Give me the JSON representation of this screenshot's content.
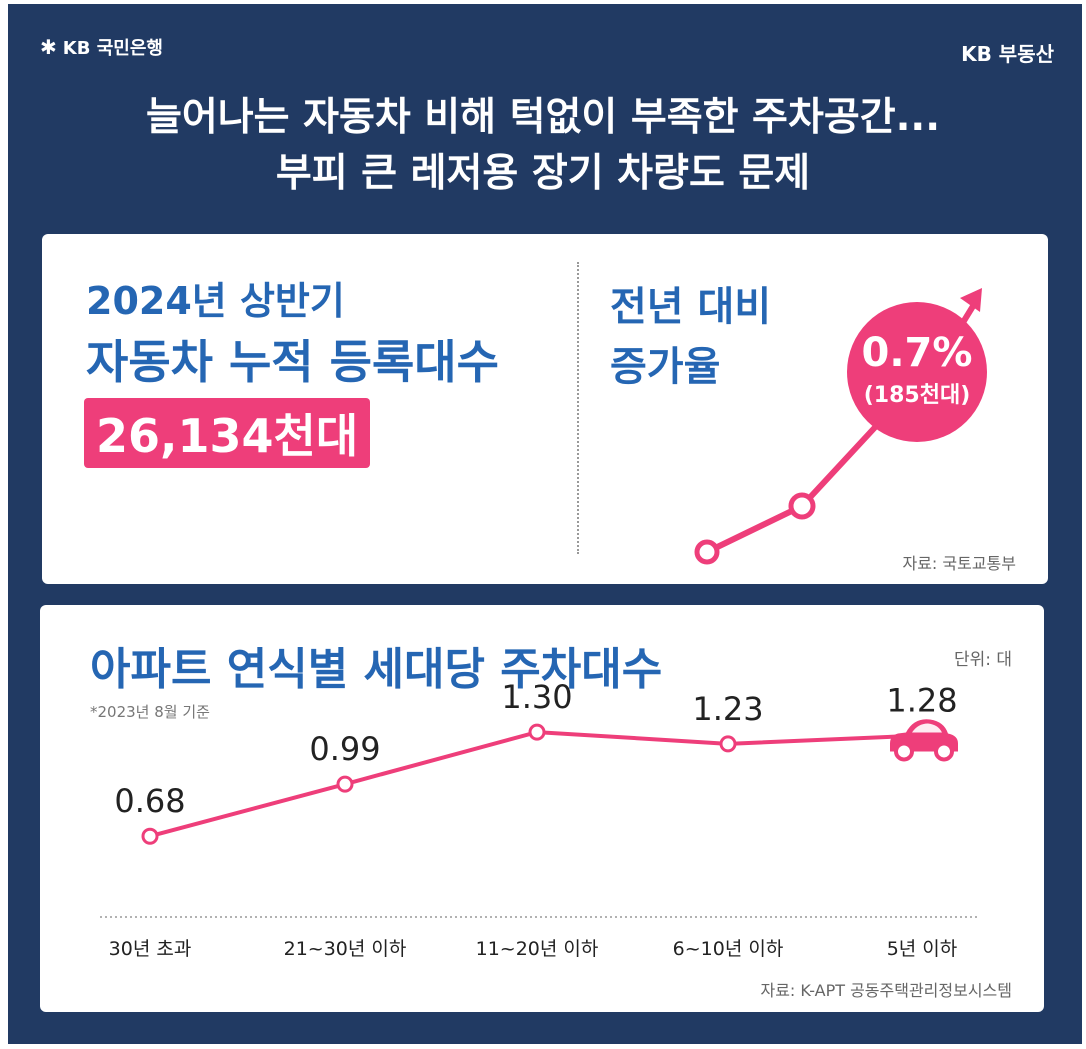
{
  "header": {
    "logo_text": "KB 국민은행",
    "brand_right": "KB 부동산",
    "title_line1_a": "늘어나는 자동차 비해 ",
    "title_line1_b": "턱없이 부족한 주차공간...",
    "title_line2": "부피 큰 레저용 장기 차량도 문제"
  },
  "registration": {
    "label_line1": "2024년 상반기",
    "label_line2": "자동차 누적 등록대수",
    "value": "26,134천대",
    "growth_label_line1": "전년 대비",
    "growth_label_line2": "증가율",
    "growth_rate": "0.7%",
    "growth_count": "(185천대)",
    "source": "자료: 국토교통부"
  },
  "parking": {
    "title": "아파트 연식별 세대당 주차대수",
    "note": "*2023년 8월 기준",
    "unit": "단위: 대",
    "source": "자료: K-APT 공동주택관리정보시스템"
  },
  "colors": {
    "navy": "#213a63",
    "pink": "#ee3e7a",
    "blue": "#2566b3"
  },
  "chart_data": {
    "type": "line",
    "title": "아파트 연식별 세대당 주차대수",
    "categories": [
      "30년 초과",
      "21~30년 이하",
      "11~20년 이하",
      "6~10년 이하",
      "5년 이하"
    ],
    "values": [
      0.68,
      0.99,
      1.3,
      1.23,
      1.28
    ],
    "data_labels": [
      "0.68",
      "0.99",
      "1.30",
      "1.23",
      "1.28"
    ],
    "ylabel": "",
    "ylim": [
      0.3,
      1.5
    ],
    "grid": false,
    "last_point_marker": "car-icon"
  }
}
